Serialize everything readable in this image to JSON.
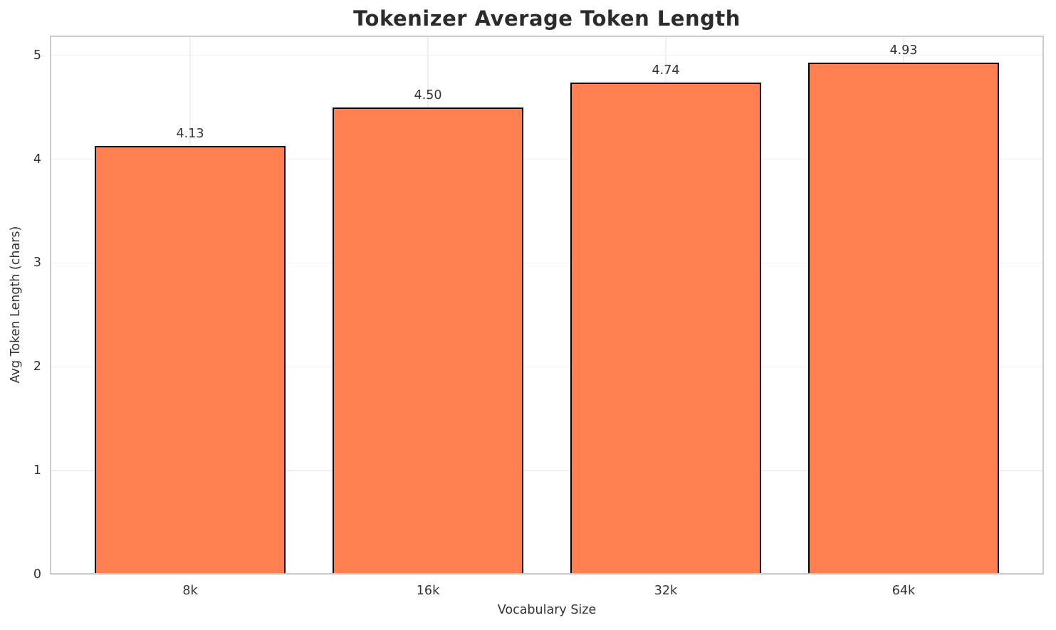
{
  "figure": {
    "background": "#ffffff"
  },
  "chart_data": {
    "type": "bar",
    "title": "Tokenizer Average Token Length",
    "xlabel": "Vocabulary Size",
    "ylabel": "Avg Token Length (chars)",
    "categories": [
      "8k",
      "16k",
      "32k",
      "64k"
    ],
    "values": [
      4.13,
      4.5,
      4.74,
      4.93
    ],
    "bar_labels": [
      "4.13",
      "4.50",
      "4.74",
      "4.93"
    ],
    "yticks": [
      0,
      1,
      2,
      3,
      4,
      5
    ],
    "ytick_labels": [
      "0",
      "1",
      "2",
      "3",
      "4",
      "5"
    ],
    "xlim": [
      -0.59,
      3.59
    ],
    "ylim": [
      0,
      5.19
    ],
    "bar_width": 0.8,
    "grid": true,
    "legend_position": null,
    "colors": {
      "bar_fill": "#FF7F50",
      "bar_edge": "#000000",
      "grid_line": "#efefef",
      "spine": "#cccccc",
      "text": "#333333",
      "title_text": "#2b2b2b"
    }
  }
}
